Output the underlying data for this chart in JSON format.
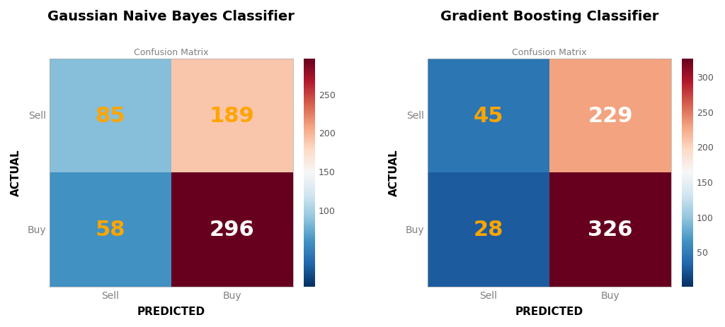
{
  "gnb": {
    "title": "Gaussian Naive Bayes Classifier",
    "subtitle": "Confusion Matrix",
    "matrix": [
      [
        85,
        189
      ],
      [
        58,
        296
      ]
    ],
    "classes": [
      "Sell",
      "Buy"
    ],
    "xlabel": "PREDICTED",
    "ylabel": "ACTUAL",
    "vmin": 0,
    "vmax": 296,
    "cbar_ticks": [
      100,
      150,
      200,
      250
    ]
  },
  "gbc": {
    "title": "Gradient Boosting Classifier",
    "subtitle": "Confusion Matrix",
    "matrix": [
      [
        45,
        229
      ],
      [
        28,
        326
      ]
    ],
    "classes": [
      "Sell",
      "Buy"
    ],
    "xlabel": "PREDICTED",
    "ylabel": "ACTUAL",
    "vmin": 0,
    "vmax": 326,
    "cbar_ticks": [
      50,
      100,
      150,
      200,
      250,
      300
    ]
  },
  "text_color_orange": "#FFA500",
  "text_color_white": "#FFFFFF",
  "fig_bg": "#FFFFFF",
  "cell_text_colors_gnb": [
    "orange",
    "orange",
    "orange",
    "white"
  ],
  "cell_text_colors_gbc": [
    "orange",
    "white",
    "orange",
    "white"
  ]
}
